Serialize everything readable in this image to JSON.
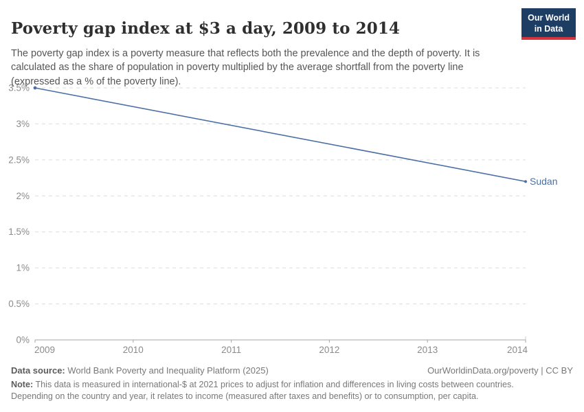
{
  "header": {
    "title": "Poverty gap index at $3 a day, 2009 to 2014",
    "subtitle": "The poverty gap index is a poverty measure that reflects both the prevalence and the depth of poverty. It is calculated as the share of population in poverty multiplied by the average shortfall from the poverty line (expressed as a % of the poverty line).",
    "logo": {
      "line1": "Our World",
      "line2": "in Data",
      "bg_color": "#1d3d63",
      "accent_color": "#d4353c"
    }
  },
  "chart_data": {
    "type": "line",
    "title": "Poverty gap index at $3 a day, 2009 to 2014",
    "xlabel": "",
    "ylabel": "",
    "xlim": [
      2009,
      2014
    ],
    "ylim": [
      0,
      3.5
    ],
    "grid": true,
    "legend_position": "end-of-line",
    "x_ticks": [
      {
        "value": 2009,
        "label": "2009"
      },
      {
        "value": 2010,
        "label": "2010"
      },
      {
        "value": 2011,
        "label": "2011"
      },
      {
        "value": 2012,
        "label": "2012"
      },
      {
        "value": 2013,
        "label": "2013"
      },
      {
        "value": 2014,
        "label": "2014"
      }
    ],
    "y_ticks": [
      {
        "value": 0,
        "label": "0%"
      },
      {
        "value": 0.5,
        "label": "0.5%"
      },
      {
        "value": 1,
        "label": "1%"
      },
      {
        "value": 1.5,
        "label": "1.5%"
      },
      {
        "value": 2,
        "label": "2%"
      },
      {
        "value": 2.5,
        "label": "2.5%"
      },
      {
        "value": 3,
        "label": "3%"
      },
      {
        "value": 3.5,
        "label": "3.5%"
      }
    ],
    "series": [
      {
        "name": "Sudan",
        "color": "#4c6fa5",
        "points": [
          {
            "x": 2009,
            "y": 3.5
          },
          {
            "x": 2014,
            "y": 2.2
          }
        ]
      }
    ]
  },
  "footer": {
    "data_source_label": "Data source:",
    "data_source_text": " World Bank Poverty and Inequality Platform (2025)",
    "link_text": "OurWorldinData.org/poverty | CC BY",
    "note_label": "Note:",
    "note_text": " This data is measured in international-$ at 2021 prices to adjust for inflation and differences in living costs between countries. Depending on the country and year, it relates to income (measured after taxes and benefits) or to consumption, per capita."
  }
}
